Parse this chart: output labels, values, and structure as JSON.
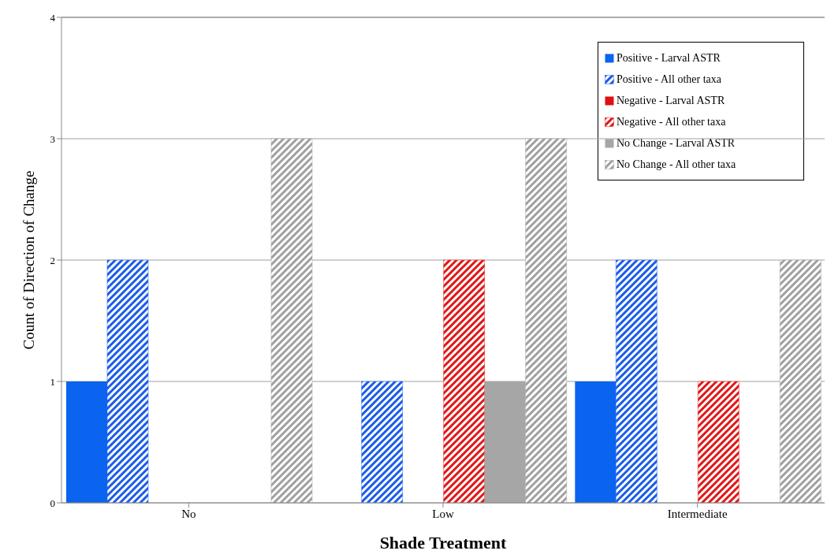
{
  "chart_data": {
    "type": "bar",
    "xlabel": "Shade Treatment",
    "ylabel": "Count of Direction of Change",
    "categories": [
      "No",
      "Low",
      "Intermediate"
    ],
    "series": [
      {
        "name": "Positive - Larval ASTR",
        "color": "#0a64f0",
        "values": [
          1,
          0,
          1
        ]
      },
      {
        "name": "Positive - All other taxa",
        "color": "#1a5ce8",
        "values": [
          2,
          1,
          2
        ]
      },
      {
        "name": "Negative - Larval ASTR",
        "color": "#e01010",
        "values": [
          0,
          0,
          0
        ]
      },
      {
        "name": "Negative - All other taxa",
        "color": "#e01818",
        "values": [
          0,
          2,
          1
        ]
      },
      {
        "name": "No Change - Larval ASTR",
        "color": "#a6a6a6",
        "values": [
          0,
          1,
          0
        ]
      },
      {
        "name": "No Change - All other taxa",
        "color": "#a0a0a0",
        "values": [
          3,
          3,
          2
        ]
      }
    ],
    "ylim": [
      0,
      4
    ],
    "yticks": [
      0,
      1,
      2,
      3,
      4
    ],
    "grid": "y",
    "legend": "top right"
  }
}
